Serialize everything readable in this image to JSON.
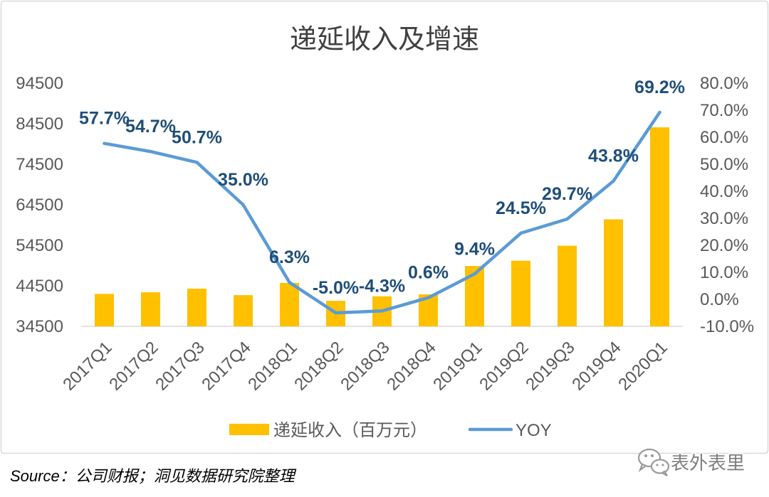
{
  "chart_data": {
    "type": "bar",
    "title": "递延收入及增速",
    "categories": [
      "2017Q1",
      "2017Q2",
      "2017Q3",
      "2017Q4",
      "2018Q1",
      "2018Q2",
      "2018Q3",
      "2018Q4",
      "2019Q1",
      "2019Q2",
      "2019Q3",
      "2019Q4",
      "2020Q1"
    ],
    "series": [
      {
        "name": "递延收入（百万元）",
        "type": "bar",
        "color": "#FFC000",
        "values": [
          42500,
          42900,
          43800,
          42200,
          45200,
          40800,
          41900,
          42400,
          49400,
          50700,
          54400,
          60900,
          83600
        ]
      },
      {
        "name": "YOY",
        "type": "line",
        "color": "#5B9BD5",
        "right_axis": true,
        "values": [
          57.7,
          54.7,
          50.7,
          35.0,
          6.3,
          -5.0,
          -4.3,
          0.6,
          9.4,
          24.5,
          29.7,
          43.8,
          69.2
        ],
        "data_labels": [
          "57.7%",
          "54.7%",
          "50.7%",
          "35.0%",
          "6.3%",
          "-5.0%",
          "-4.3%",
          "0.6%",
          "9.4%",
          "24.5%",
          "29.7%",
          "43.8%",
          "69.2%"
        ],
        "label_color": "#1F4E79"
      }
    ],
    "y_left": {
      "min": 34500,
      "max": 94500,
      "ticks": [
        "94500",
        "84500",
        "74500",
        "64500",
        "54500",
        "44500",
        "34500"
      ]
    },
    "y_right": {
      "min": -10,
      "max": 80,
      "ticks": [
        "80.0%",
        "70.0%",
        "60.0%",
        "50.0%",
        "40.0%",
        "30.0%",
        "20.0%",
        "10.0%",
        "0.0%",
        "-10.0%"
      ]
    },
    "legend": "bottom",
    "grid": false
  },
  "source": "Source：公司财报；洞见数据研究院整理",
  "watermark": {
    "text": "表外表里",
    "icon": "wechat-icon"
  }
}
